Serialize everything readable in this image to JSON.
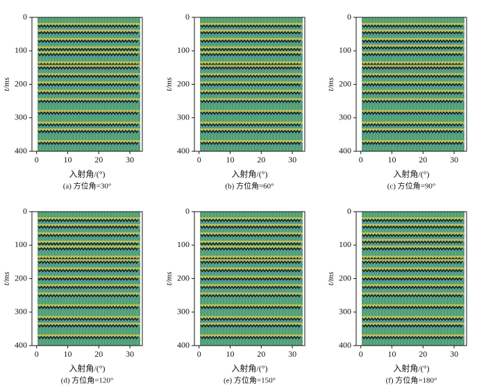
{
  "chart_data": [
    {
      "type": "seismic",
      "caption": "(a) 方位角=30°",
      "xlabel": "入射角/(°)",
      "ylabel": "t/ms",
      "xlim": [
        -1.5,
        34
      ],
      "xticks": [
        0,
        10,
        20,
        30
      ],
      "ylim": [
        0,
        400
      ],
      "yticks": [
        0,
        100,
        200,
        300,
        400
      ],
      "y_inverted": true,
      "color": "#5aa87a",
      "events": [
        25,
        45,
        70,
        95,
        110,
        140,
        150,
        175,
        200,
        225,
        250,
        285,
        320,
        340,
        375
      ]
    },
    {
      "type": "seismic",
      "caption": "(b) 方位角=60°",
      "xlabel": "入射角/(°)",
      "ylabel": "t/ms",
      "xlim": [
        -1.5,
        34
      ],
      "xticks": [
        0,
        10,
        20,
        30
      ],
      "ylim": [
        0,
        400
      ],
      "yticks": [
        0,
        100,
        200,
        300,
        400
      ],
      "y_inverted": true,
      "color": "#5aa87a",
      "events": [
        25,
        45,
        70,
        95,
        110,
        140,
        150,
        175,
        200,
        225,
        250,
        285,
        320,
        340,
        375
      ]
    },
    {
      "type": "seismic",
      "caption": "(c) 方位角=90°",
      "xlabel": "入射角/(°)",
      "ylabel": "t/ms",
      "xlim": [
        -1.5,
        34
      ],
      "xticks": [
        0,
        10,
        20,
        30
      ],
      "ylim": [
        0,
        400
      ],
      "yticks": [
        0,
        100,
        200,
        300,
        400
      ],
      "y_inverted": true,
      "color": "#5aa87a",
      "events": [
        25,
        45,
        70,
        90,
        110,
        140,
        150,
        175,
        200,
        225,
        250,
        285,
        320,
        340,
        375
      ]
    },
    {
      "type": "seismic",
      "caption": "(d) 方位角=120°",
      "xlabel": "入射角/(°)",
      "ylabel": "t/ms",
      "xlim": [
        -1.5,
        34
      ],
      "xticks": [
        0,
        10,
        20,
        30
      ],
      "ylim": [
        0,
        400
      ],
      "yticks": [
        0,
        100,
        200,
        300,
        400
      ],
      "y_inverted": true,
      "color": "#5aa87a",
      "events": [
        25,
        45,
        70,
        95,
        110,
        140,
        150,
        175,
        200,
        225,
        250,
        285,
        320,
        340,
        375
      ]
    },
    {
      "type": "seismic",
      "caption": "(e) 方位角=150°",
      "xlabel": "入射角/(°)",
      "ylabel": "t/ms",
      "xlim": [
        -1.5,
        34
      ],
      "xticks": [
        0,
        10,
        20,
        30
      ],
      "ylim": [
        0,
        400
      ],
      "yticks": [
        0,
        100,
        200,
        300,
        400
      ],
      "y_inverted": true,
      "color": "#5aa87a",
      "events": [
        25,
        45,
        70,
        95,
        110,
        140,
        150,
        175,
        200,
        225,
        250,
        285,
        320,
        340,
        375
      ]
    },
    {
      "type": "seismic",
      "caption": "(f) 方位角=180°",
      "xlabel": "入射角/(°)",
      "ylabel": "t/ms",
      "xlim": [
        -1.5,
        34
      ],
      "xticks": [
        0,
        10,
        20,
        30
      ],
      "ylim": [
        0,
        400
      ],
      "yticks": [
        0,
        100,
        200,
        300,
        400
      ],
      "y_inverted": true,
      "color": "#5aa87a",
      "events": [
        25,
        45,
        70,
        90,
        110,
        140,
        150,
        175,
        200,
        225,
        250,
        285,
        320,
        340,
        375
      ]
    }
  ]
}
